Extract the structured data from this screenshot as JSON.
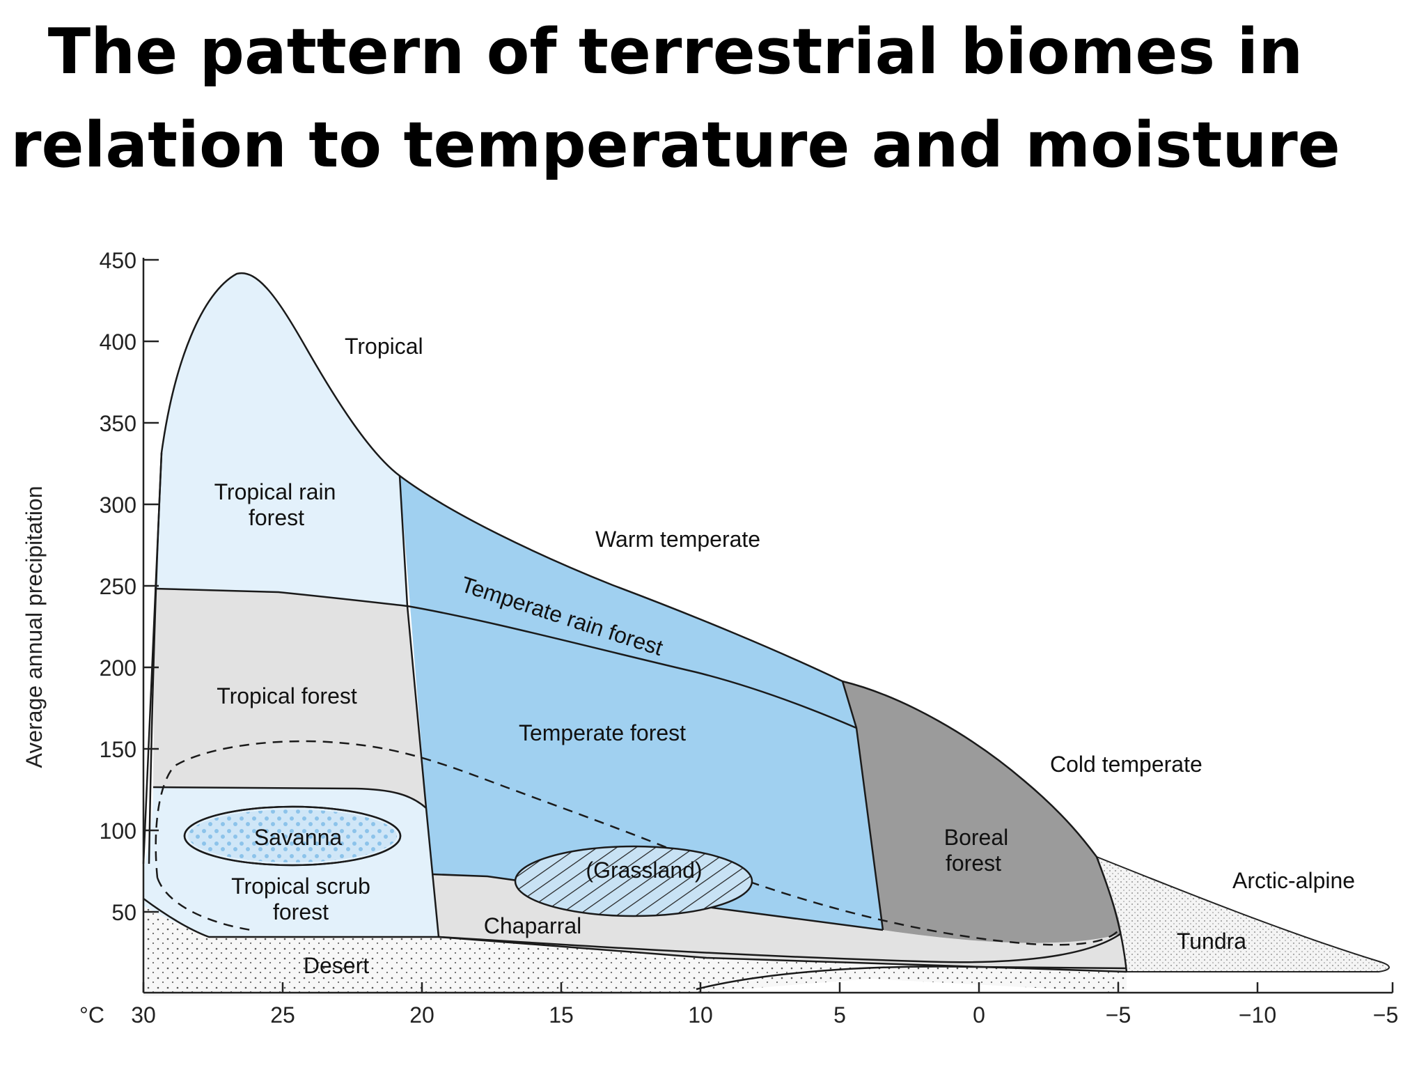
{
  "title": {
    "line1": "The pattern of terrestrial biomes in",
    "line2": "relation to temperature and moisture"
  },
  "axes": {
    "ylabel": "Average annual precipitation",
    "x_unit": "°C",
    "y_ticks": [
      "450",
      "400",
      "350",
      "300",
      "250",
      "200",
      "150",
      "100",
      "50"
    ],
    "x_ticks": [
      "30",
      "25",
      "20",
      "15",
      "10",
      "5",
      "0",
      "−5",
      "−10",
      "−5"
    ]
  },
  "zones": {
    "tropical": "Tropical",
    "warm_temperate": "Warm temperate",
    "cold_temperate": "Cold temperate",
    "arctic_alpine": "Arctic-alpine"
  },
  "biomes": {
    "tropical_rain_forest_1": "Tropical rain",
    "tropical_rain_forest_2": "forest",
    "tropical_forest": "Tropical forest",
    "savanna": "Savanna",
    "tropical_scrub_1": "Tropical scrub",
    "tropical_scrub_2": "forest",
    "temperate_rain_forest": "Temperate rain forest",
    "temperate_forest": "Temperate forest",
    "grassland": "(Grassland)",
    "chaparral": "Chaparral",
    "desert": "Desert",
    "boreal_1": "Boreal",
    "boreal_2": "forest",
    "tundra": "Tundra"
  },
  "colors": {
    "light_blue": "#e3f1fb",
    "mid_blue": "#a0d0f0",
    "light_gray": "#e2e2e2",
    "dark_gray": "#9b9b9b",
    "desert_fill": "#f7f7f7",
    "outline": "#1a1a1a"
  }
}
